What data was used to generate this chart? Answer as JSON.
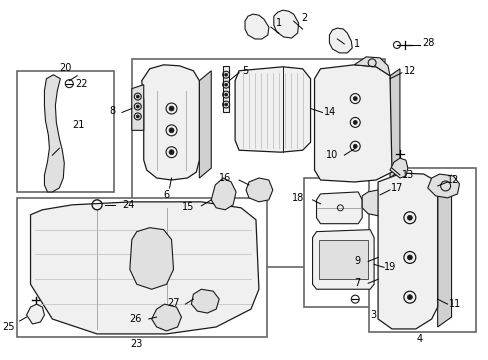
{
  "bg_color": "#ffffff",
  "line_color": "#1a1a1a",
  "label_color": "#000000",
  "fig_width": 4.89,
  "fig_height": 3.6,
  "dpi": 100,
  "box_color": "#666666",
  "part_fill": "#f0f0f0",
  "part_edge": "#1a1a1a",
  "dark_fill": "#d0d0d0",
  "mid_fill": "#e0e0e0"
}
